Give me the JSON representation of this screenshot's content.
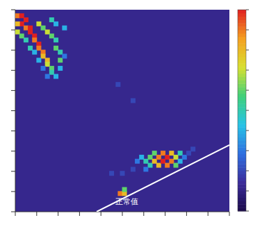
{
  "chart_data": {
    "type": "heatmap",
    "xlim": [
      0,
      100
    ],
    "xticks": [
      0,
      10,
      20,
      30,
      40,
      50,
      60,
      70,
      80,
      90,
      100
    ],
    "ylim": [
      0,
      100
    ],
    "yticks": [
      0,
      10,
      20,
      30,
      40,
      50,
      60,
      70,
      80,
      90,
      100
    ],
    "tick_labels": false,
    "grid": false,
    "cells": [
      [
        1,
        97,
        9
      ],
      [
        3,
        97,
        10
      ],
      [
        5,
        95,
        10
      ],
      [
        3,
        93,
        10
      ],
      [
        5,
        91,
        9
      ],
      [
        7,
        91,
        10
      ],
      [
        7,
        89,
        10
      ],
      [
        9,
        87,
        10
      ],
      [
        9,
        85,
        9
      ],
      [
        11,
        83,
        10
      ],
      [
        11,
        81,
        9
      ],
      [
        13,
        79,
        9
      ],
      [
        13,
        77,
        8
      ],
      [
        15,
        75,
        8
      ],
      [
        15,
        73,
        7
      ],
      [
        17,
        71,
        6
      ],
      [
        17,
        69,
        5
      ],
      [
        19,
        67,
        4
      ],
      [
        1,
        93,
        8
      ],
      [
        1,
        89,
        7
      ],
      [
        3,
        87,
        6
      ],
      [
        5,
        85,
        5
      ],
      [
        7,
        81,
        5
      ],
      [
        9,
        79,
        4
      ],
      [
        11,
        75,
        4
      ],
      [
        13,
        71,
        3
      ],
      [
        15,
        67,
        3
      ],
      [
        11,
        93,
        7
      ],
      [
        13,
        91,
        6
      ],
      [
        15,
        89,
        7
      ],
      [
        17,
        87,
        6
      ],
      [
        19,
        85,
        5
      ],
      [
        19,
        81,
        6
      ],
      [
        21,
        79,
        5
      ],
      [
        21,
        75,
        6
      ],
      [
        21,
        71,
        4
      ],
      [
        23,
        77,
        3
      ],
      [
        23,
        91,
        4
      ],
      [
        17,
        95,
        5
      ],
      [
        19,
        93,
        4
      ],
      [
        57,
        25,
        3
      ],
      [
        59,
        27,
        4
      ],
      [
        61,
        25,
        5
      ],
      [
        63,
        27,
        6
      ],
      [
        63,
        23,
        5
      ],
      [
        65,
        29,
        6
      ],
      [
        65,
        25,
        8
      ],
      [
        67,
        27,
        9
      ],
      [
        67,
        23,
        8
      ],
      [
        69,
        29,
        9
      ],
      [
        69,
        25,
        10
      ],
      [
        71,
        27,
        10
      ],
      [
        71,
        23,
        9
      ],
      [
        73,
        29,
        8
      ],
      [
        73,
        25,
        9
      ],
      [
        75,
        27,
        7
      ],
      [
        75,
        23,
        6
      ],
      [
        77,
        29,
        5
      ],
      [
        77,
        25,
        4
      ],
      [
        79,
        27,
        3
      ],
      [
        61,
        21,
        3
      ],
      [
        55,
        21,
        2
      ],
      [
        50,
        19,
        2
      ],
      [
        45,
        19,
        2
      ],
      [
        81,
        29,
        2
      ],
      [
        83,
        31,
        2
      ],
      [
        49,
        9,
        9
      ],
      [
        51,
        9,
        8
      ],
      [
        51,
        11,
        6
      ],
      [
        55,
        55,
        2
      ],
      [
        48,
        63,
        2
      ]
    ],
    "colorbar": {
      "range": [
        0,
        10
      ],
      "ticks": [
        0,
        1,
        2,
        3,
        4,
        5,
        6,
        7,
        8,
        9,
        10
      ]
    },
    "line": {
      "x": [
        38,
        100
      ],
      "y": [
        0,
        33
      ],
      "color": "#ffffff"
    },
    "annotations": [
      {
        "text": "正常值",
        "x": 52,
        "y": 5
      }
    ]
  }
}
